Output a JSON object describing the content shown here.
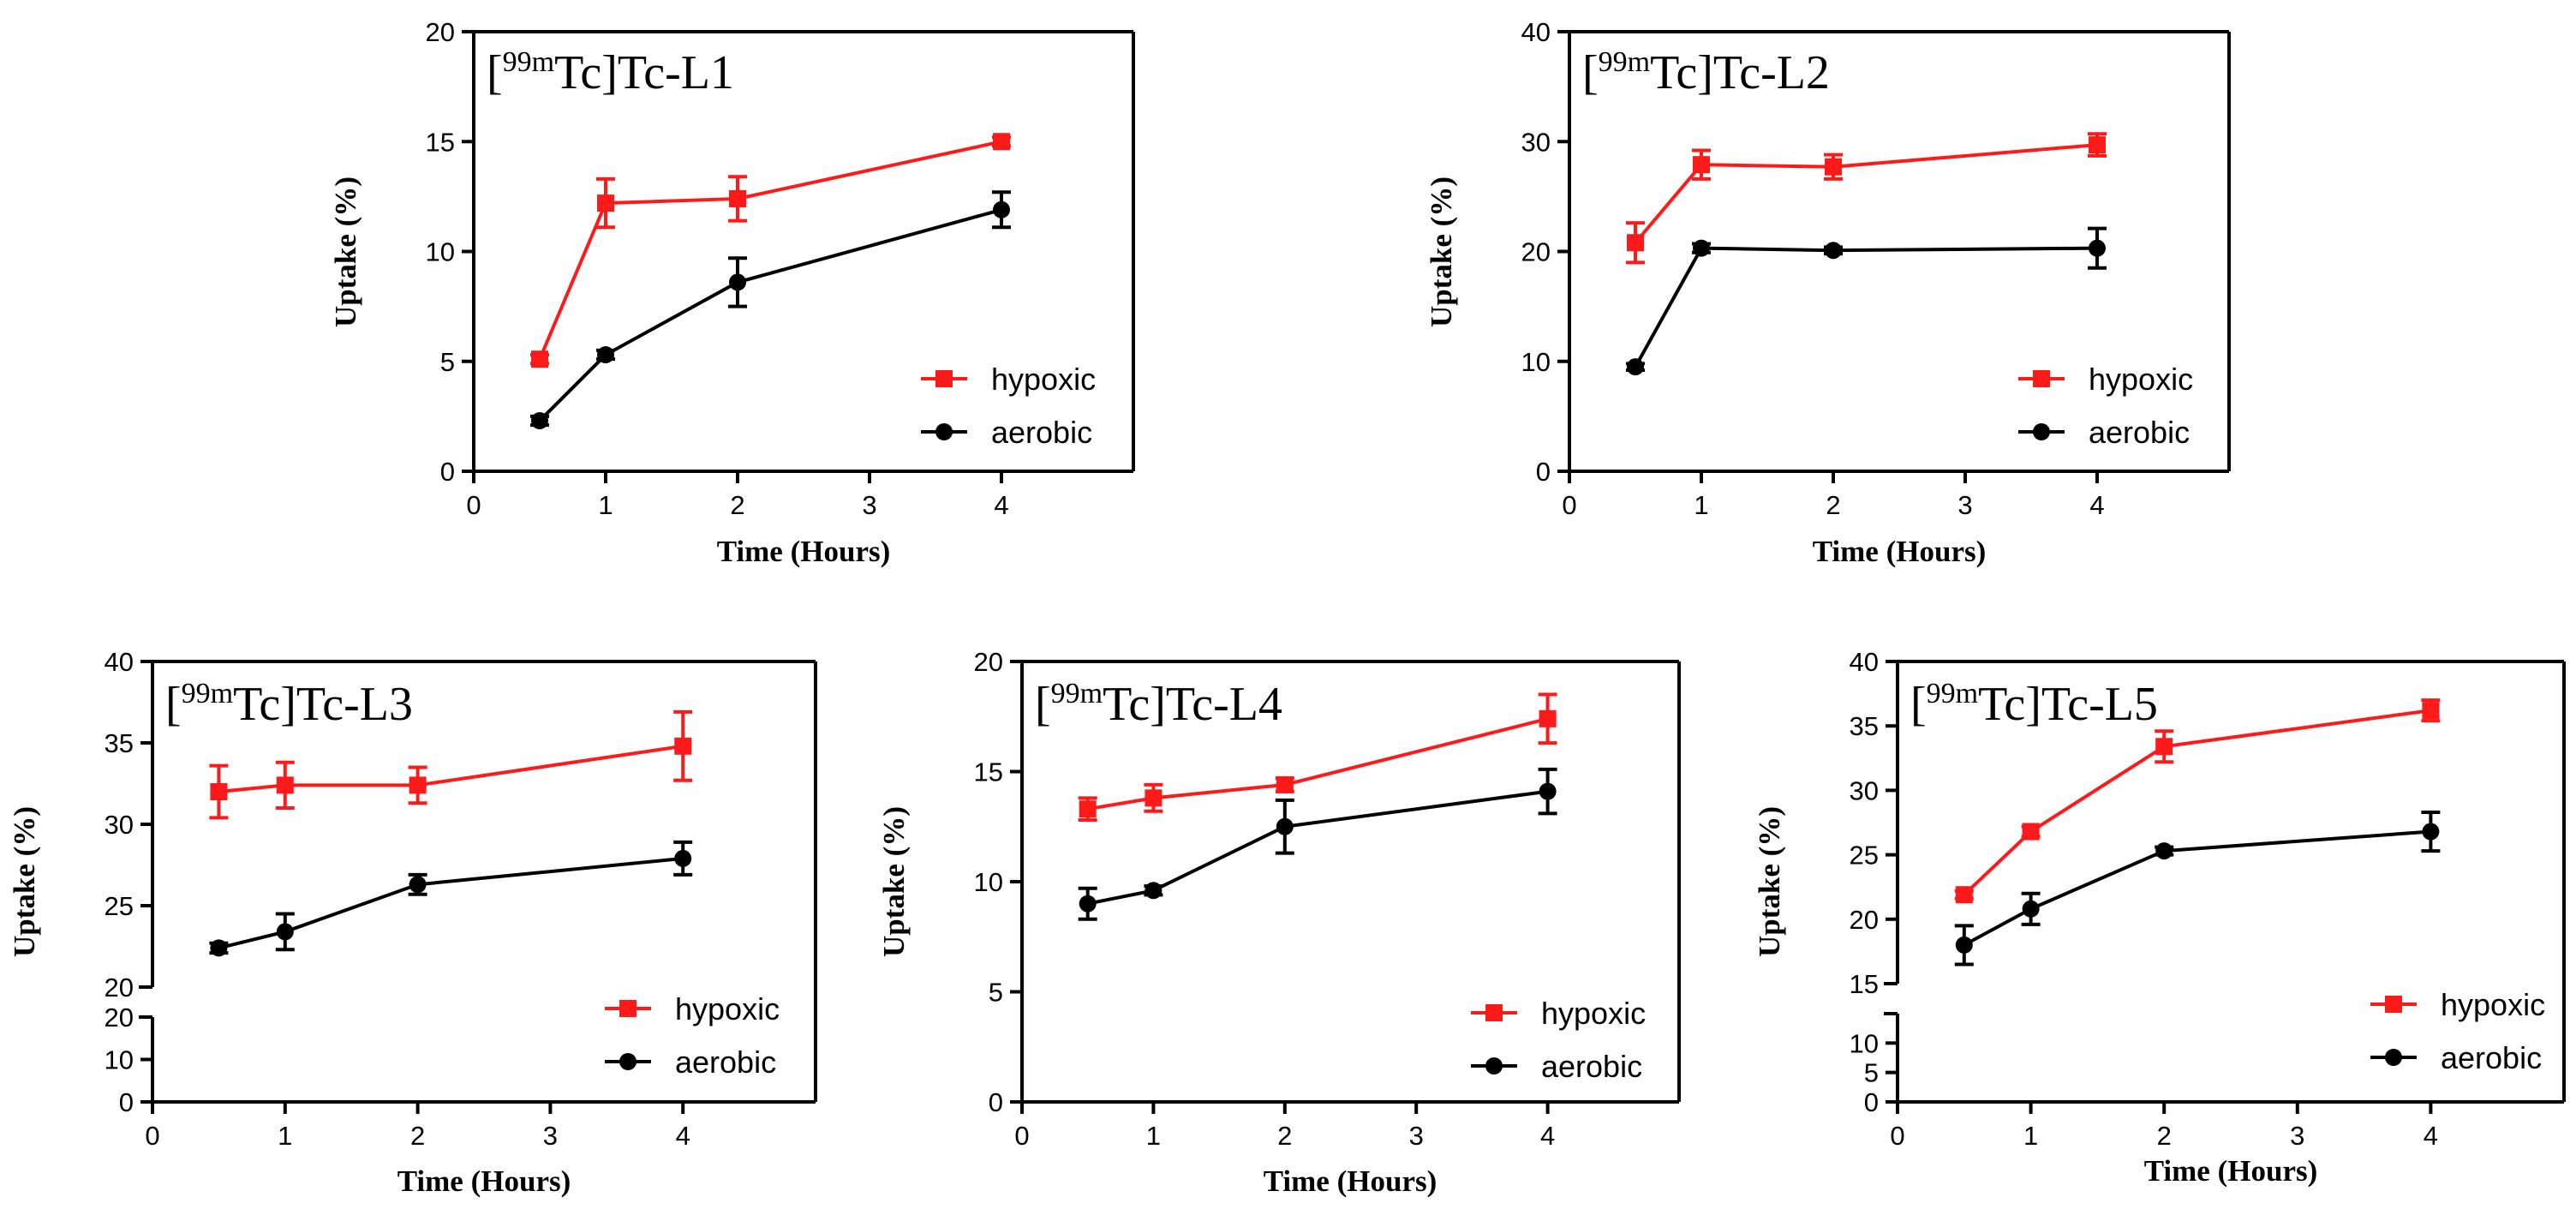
{
  "colors": {
    "hypoxic": "#ff1a1a",
    "aerobic": "#000000",
    "axis": "#000000"
  },
  "chart_data": [
    {
      "type": "line",
      "id": "L1",
      "title": {
        "prefix": "[",
        "sup": "99m",
        "rest": "Tc]Tc-L1"
      },
      "xlabel": "Time (Hours)",
      "ylabel": "Uptake (%)",
      "xlim": [
        0,
        5
      ],
      "xticks": [
        0,
        1,
        2,
        3,
        4
      ],
      "ylim": [
        0,
        20
      ],
      "yticks": [
        0,
        5,
        10,
        15,
        20
      ],
      "legend": "bottom-right",
      "series": [
        {
          "name": "hypoxic",
          "x": [
            0.5,
            1,
            2,
            4
          ],
          "y": [
            5.1,
            12.2,
            12.4,
            15.0
          ],
          "err": [
            0.2,
            1.1,
            1.0,
            0.2
          ]
        },
        {
          "name": "aerobic",
          "x": [
            0.5,
            1,
            2,
            4
          ],
          "y": [
            2.3,
            5.3,
            8.6,
            11.9
          ],
          "err": [
            0.2,
            0.2,
            1.1,
            0.8
          ]
        }
      ]
    },
    {
      "type": "line",
      "id": "L2",
      "title": {
        "prefix": "[",
        "sup": "99m",
        "rest": "Tc]Tc-L2"
      },
      "xlabel": "Time (Hours)",
      "ylabel": "Uptake (%)",
      "xlim": [
        0,
        5
      ],
      "xticks": [
        0,
        1,
        2,
        3,
        4
      ],
      "ylim": [
        0,
        40
      ],
      "yticks": [
        0,
        10,
        20,
        30,
        40
      ],
      "legend": "bottom-right",
      "series": [
        {
          "name": "hypoxic",
          "x": [
            0.5,
            1,
            2,
            4
          ],
          "y": [
            20.8,
            27.9,
            27.7,
            29.7
          ],
          "err": [
            1.8,
            1.3,
            1.1,
            1.0
          ]
        },
        {
          "name": "aerobic",
          "x": [
            0.5,
            1,
            2,
            4
          ],
          "y": [
            9.5,
            20.3,
            20.1,
            20.3
          ],
          "err": [
            0.3,
            0.4,
            0.3,
            1.8
          ]
        }
      ]
    },
    {
      "type": "line",
      "id": "L3",
      "title": {
        "prefix": "[",
        "sup": "99m",
        "rest": "Tc]Tc-L3"
      },
      "xlabel": "Time (Hours)",
      "ylabel": "Uptake (%)",
      "xlim": [
        0,
        5
      ],
      "xticks": [
        0,
        1,
        2,
        3,
        4
      ],
      "ylim": [
        0,
        40
      ],
      "axis_break": true,
      "ylower": {
        "range": [
          0,
          20
        ],
        "ticks": [
          0,
          10,
          20
        ]
      },
      "yupper": {
        "range": [
          20,
          40
        ],
        "ticks": [
          20,
          25,
          30,
          35,
          40
        ]
      },
      "legend": "bottom-right",
      "series": [
        {
          "name": "hypoxic",
          "x": [
            0.5,
            1,
            2,
            4
          ],
          "y": [
            32.0,
            32.4,
            32.4,
            34.8
          ],
          "err": [
            1.6,
            1.4,
            1.1,
            2.1
          ]
        },
        {
          "name": "aerobic",
          "x": [
            0.5,
            1,
            2,
            4
          ],
          "y": [
            22.4,
            23.4,
            26.3,
            27.9
          ],
          "err": [
            0.3,
            1.1,
            0.6,
            1.0
          ]
        }
      ]
    },
    {
      "type": "line",
      "id": "L4",
      "title": {
        "prefix": "[",
        "sup": "99m",
        "rest": "Tc]Tc-L4"
      },
      "xlabel": "Time (Hours)",
      "ylabel": "Uptake (%)",
      "xlim": [
        0,
        5
      ],
      "xticks": [
        0,
        1,
        2,
        3,
        4
      ],
      "ylim": [
        0,
        20
      ],
      "yticks": [
        0,
        5,
        10,
        15,
        20
      ],
      "legend": "bottom-right",
      "series": [
        {
          "name": "hypoxic",
          "x": [
            0.5,
            1,
            2,
            4
          ],
          "y": [
            13.3,
            13.8,
            14.4,
            17.4
          ],
          "err": [
            0.5,
            0.6,
            0.3,
            1.1
          ]
        },
        {
          "name": "aerobic",
          "x": [
            0.5,
            1,
            2,
            4
          ],
          "y": [
            9.0,
            9.6,
            12.5,
            14.1
          ],
          "err": [
            0.7,
            0.2,
            1.2,
            1.0
          ]
        }
      ]
    },
    {
      "type": "line",
      "id": "L5",
      "title": {
        "prefix": "[",
        "sup": "99m",
        "rest": "Tc]Tc-L5"
      },
      "xlabel": "Time (Hours)",
      "ylabel": "Uptake (%)",
      "xlim": [
        0,
        5
      ],
      "xticks": [
        0,
        1,
        2,
        3,
        4
      ],
      "ylim": [
        0,
        40
      ],
      "axis_break": true,
      "ylower": {
        "range": [
          0,
          15
        ],
        "ticks": [
          0,
          5,
          10
        ]
      },
      "yupper": {
        "range": [
          15,
          40
        ],
        "ticks": [
          15,
          20,
          25,
          30,
          35,
          40
        ]
      },
      "legend": "bottom-right",
      "series": [
        {
          "name": "hypoxic",
          "x": [
            0.5,
            1,
            2,
            4
          ],
          "y": [
            21.9,
            26.8,
            33.4,
            36.2
          ],
          "err": [
            0.3,
            0.4,
            1.2,
            0.8
          ]
        },
        {
          "name": "aerobic",
          "x": [
            0.5,
            1,
            2,
            4
          ],
          "y": [
            18.0,
            20.8,
            25.3,
            26.8
          ],
          "err": [
            1.5,
            1.2,
            0.3,
            1.5
          ]
        }
      ]
    }
  ]
}
